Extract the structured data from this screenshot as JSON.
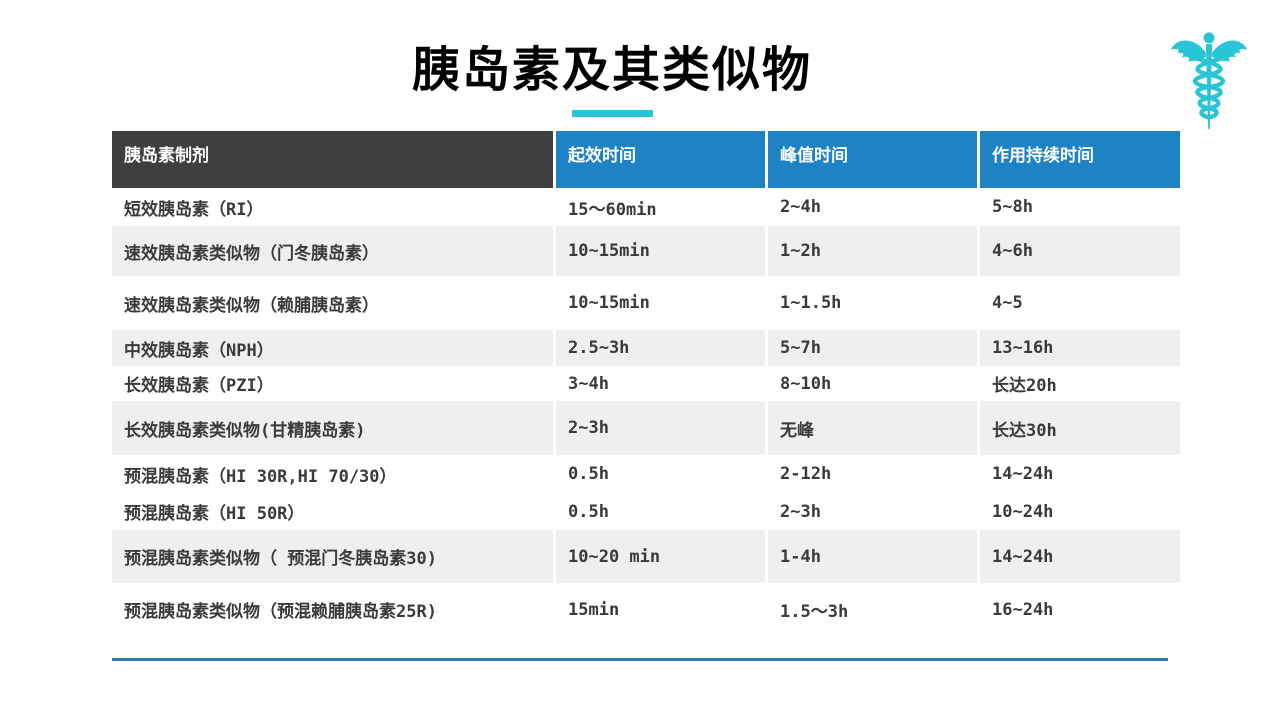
{
  "slide": {
    "title": "胰岛素及其类似物",
    "icon": "caduceus-icon"
  },
  "colors": {
    "accent_cyan": "#29c5d6",
    "header_dark": "#3f3f3f",
    "header_blue": "#1e83c4",
    "row_stripe_gray": "#efefef",
    "bottom_divider_blue": "#3478a6",
    "body_text": "#3a3a3a"
  },
  "table": {
    "columns": [
      "胰岛素制剂",
      "起效时间",
      "峰值时间",
      "作用持续时间"
    ],
    "rows": [
      {
        "name": "短效胰岛素（RI）",
        "onset": "15～60min",
        "peak": "2~4h",
        "duration": "5~8h",
        "shade": false
      },
      {
        "name": "速效胰岛素类似物（门冬胰岛素）",
        "onset": "10~15min",
        "peak": "1~2h",
        "duration": "4~6h",
        "shade": true
      },
      {
        "name": "速效胰岛素类似物（赖脯胰岛素）",
        "onset": "10~15min",
        "peak": "1~1.5h",
        "duration": "4~5",
        "shade": false
      },
      {
        "name": "中效胰岛素（NPH）",
        "onset": "2.5~3h",
        "peak": "5~7h",
        "duration": "13~16h",
        "shade": true
      },
      {
        "name": "长效胰岛素（PZI）",
        "onset": "3~4h",
        "peak": "8~10h",
        "duration": "长达20h",
        "shade": false
      },
      {
        "name": "长效胰岛素类似物(甘精胰岛素)",
        "onset": "2~3h",
        "peak": "无峰",
        "duration": "长达30h",
        "shade": true
      },
      {
        "name": "预混胰岛素（HI 30R,HI 70/30）",
        "onset": "0.5h",
        "peak": "2-12h",
        "duration": "14~24h",
        "shade": false
      },
      {
        "name": "预混胰岛素（HI 50R）",
        "onset": "0.5h",
        "peak": "2~3h",
        "duration": "10~24h",
        "shade": false
      },
      {
        "name": "预混胰岛素类似物（ 预混门冬胰岛素30)",
        "onset": "10~20 min",
        "peak": "1-4h",
        "duration": "14~24h",
        "shade": true
      },
      {
        "name": "预混胰岛素类似物（预混赖脯胰岛素25R)",
        "onset": "15min",
        "peak": "1.5～3h",
        "duration": "16~24h",
        "shade": false
      }
    ]
  }
}
